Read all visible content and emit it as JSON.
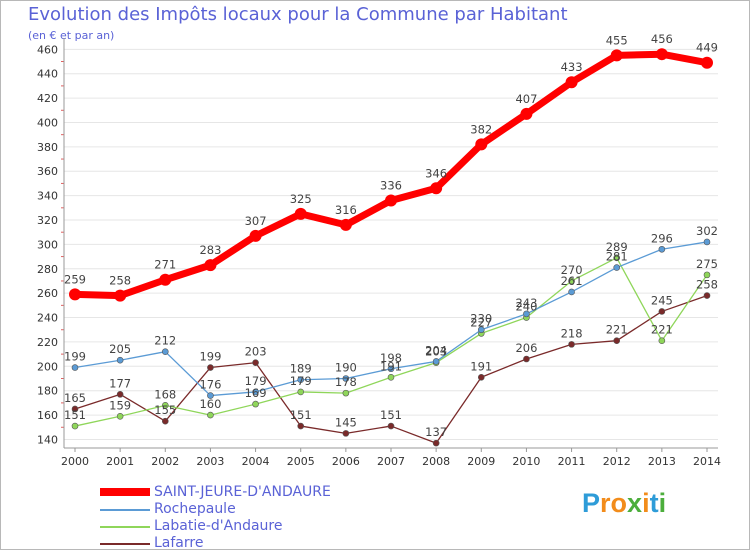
{
  "chart_data": {
    "type": "line",
    "title": "Evolution des Impôts locaux pour la Commune par Habitant",
    "subtitle": "(en € et par an)",
    "xlabel": "",
    "ylabel": "",
    "categories": [
      "2000",
      "2001",
      "2002",
      "2003",
      "2004",
      "2005",
      "2006",
      "2007",
      "2008",
      "2009",
      "2010",
      "2011",
      "2012",
      "2013",
      "2014"
    ],
    "y_ticks": [
      140,
      160,
      180,
      200,
      220,
      240,
      260,
      280,
      300,
      320,
      340,
      360,
      380,
      400,
      420,
      440,
      460
    ],
    "ylim": [
      133,
      466
    ],
    "grid": "horizontal",
    "legend_position": "bottom-left",
    "series": [
      {
        "name": "SAINT-JEURE-D'ANDAURE",
        "color": "#ff0000",
        "values": [
          259,
          258,
          271,
          283,
          307,
          325,
          316,
          336,
          346,
          382,
          407,
          433,
          455,
          456,
          449
        ],
        "labels": [
          "259",
          "258",
          "271",
          "283",
          "307",
          "325",
          "316",
          "336",
          "346",
          "382",
          "407",
          "433",
          "455",
          "456",
          "449"
        ]
      },
      {
        "name": "Rochepaule",
        "color": "#5b9bd5",
        "values": [
          199,
          205,
          212,
          176,
          179,
          189,
          190,
          198,
          204,
          230,
          243,
          261,
          281,
          296,
          302
        ],
        "labels": [
          "199",
          "205",
          "212",
          "176",
          "179",
          "189",
          "190",
          "198",
          "204",
          "230",
          "243",
          "261",
          "281",
          "296",
          "302"
        ]
      },
      {
        "name": "Labatie-d'Andaure",
        "color": "#8fd65a",
        "values": [
          151,
          159,
          168,
          160,
          169,
          179,
          178,
          191,
          203,
          227,
          240,
          270,
          289,
          221,
          275
        ],
        "labels": [
          "151",
          "159",
          "168",
          "160",
          "169",
          "179",
          "178",
          "191",
          "203",
          "227",
          "240",
          "270",
          "289",
          "221",
          "275"
        ]
      },
      {
        "name": "Lafarre",
        "color": "#7a2a2a",
        "values": [
          165,
          177,
          155,
          199,
          203,
          151,
          145,
          151,
          137,
          191,
          206,
          218,
          221,
          245,
          258
        ],
        "labels": [
          "165",
          "177",
          "155",
          "199",
          "203",
          "151",
          "145",
          "151",
          "137",
          "191",
          "206",
          "218",
          "221",
          "245",
          "258"
        ]
      }
    ]
  },
  "brand": {
    "letters": [
      "P",
      "r",
      "o",
      "x",
      "i",
      "t",
      "i"
    ],
    "colors": [
      "#2e9cd8",
      "#f28c1b",
      "#f28c1b",
      "#4cae3c",
      "#f28c1b",
      "#2e9cd8",
      "#4cae3c"
    ]
  }
}
